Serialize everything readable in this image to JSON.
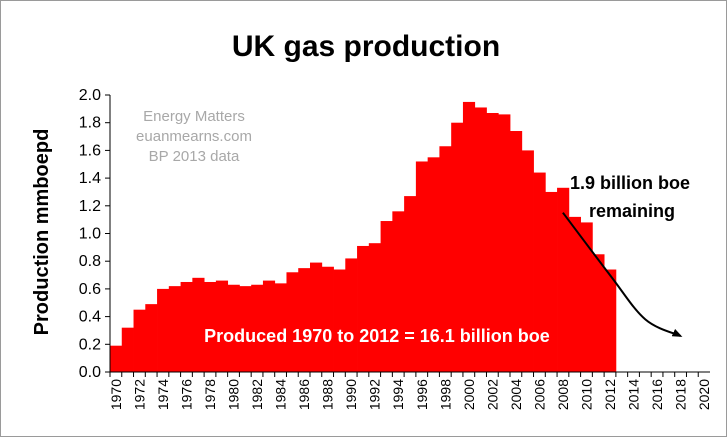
{
  "chart_data": {
    "type": "bar",
    "title": "UK gas production",
    "ylabel": "Production mmboepd",
    "xlabel": "",
    "ylim": [
      0,
      2.0
    ],
    "yticks": [
      "0.0",
      "0.2",
      "0.4",
      "0.6",
      "0.8",
      "1.0",
      "1.2",
      "1.4",
      "1.6",
      "1.8",
      "2.0"
    ],
    "xticks": [
      "1970",
      "1972",
      "1974",
      "1976",
      "1978",
      "1980",
      "1982",
      "1984",
      "1986",
      "1988",
      "1990",
      "1992",
      "1994",
      "1996",
      "1998",
      "2000",
      "2002",
      "2004",
      "2006",
      "2008",
      "2010",
      "2012",
      "2014",
      "2016",
      "2018",
      "2020"
    ],
    "xlim": [
      1970,
      2020
    ],
    "grid": false,
    "bar_color": "#ff0000",
    "categories": [
      1970,
      1971,
      1972,
      1973,
      1974,
      1975,
      1976,
      1977,
      1978,
      1979,
      1980,
      1981,
      1982,
      1983,
      1984,
      1985,
      1986,
      1987,
      1988,
      1989,
      1990,
      1991,
      1992,
      1993,
      1994,
      1995,
      1996,
      1997,
      1998,
      1999,
      2000,
      2001,
      2002,
      2003,
      2004,
      2005,
      2006,
      2007,
      2008,
      2009,
      2010,
      2011,
      2012
    ],
    "values": [
      0.19,
      0.32,
      0.45,
      0.49,
      0.6,
      0.62,
      0.65,
      0.68,
      0.65,
      0.66,
      0.63,
      0.62,
      0.63,
      0.66,
      0.64,
      0.72,
      0.75,
      0.79,
      0.76,
      0.74,
      0.82,
      0.91,
      0.93,
      1.09,
      1.16,
      1.27,
      1.52,
      1.55,
      1.63,
      1.8,
      1.95,
      1.91,
      1.87,
      1.86,
      1.74,
      1.6,
      1.44,
      1.3,
      1.33,
      1.12,
      1.08,
      0.85,
      0.74
    ],
    "annotations": {
      "watermark": [
        "Energy Matters",
        "euanmearns.com",
        "BP 2013 data"
      ],
      "produced": "Produced 1970 to 2012 = 16.1 billion boe",
      "remaining_line1": "1.9 billion boe",
      "remaining_line2": "remaining"
    },
    "trend_arrow": {
      "points": [
        [
          2008,
          1.15
        ],
        [
          2012,
          0.7
        ],
        [
          2015,
          0.38
        ],
        [
          2018,
          0.26
        ]
      ],
      "color": "#000000"
    }
  }
}
